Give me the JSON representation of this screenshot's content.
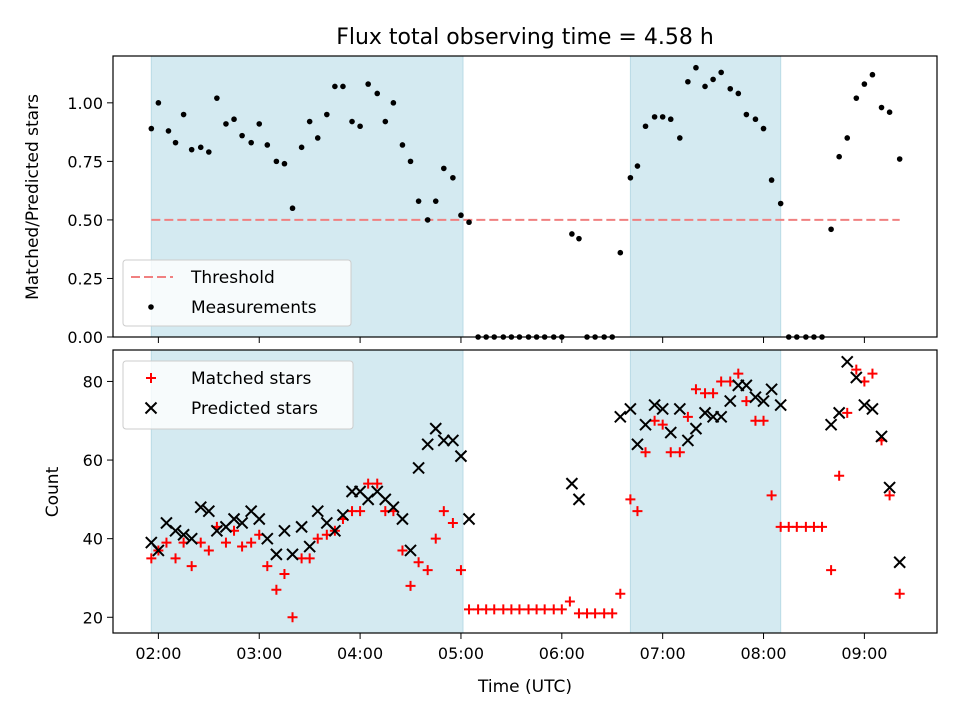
{
  "chart_data": [
    {
      "type": "scatter",
      "title": "Flux total observing time = 4.58 h",
      "ylabel": "Matched/Predicted stars",
      "xlabel": "",
      "ylim": [
        0,
        1.2
      ],
      "xlim": [
        1.55,
        9.72
      ],
      "yticks": [
        "0.00",
        "0.25",
        "0.50",
        "0.75",
        "1.00"
      ],
      "yticks_values": [
        0,
        0.25,
        0.5,
        0.75,
        1.0
      ],
      "shaded_intervals": [
        [
          1.93,
          5.02
        ],
        [
          6.68,
          8.17
        ]
      ],
      "shade_color": "#d4eaf1",
      "threshold": {
        "name": "Threshold",
        "value": 0.5,
        "x_range": [
          1.93,
          9.35
        ],
        "color": "#f08080"
      },
      "legend_position": "lower left",
      "legend_entries": [
        "Threshold",
        "Measurements"
      ],
      "series": [
        {
          "name": "Measurements",
          "color": "#000000",
          "x": [
            1.93,
            2.0,
            2.1,
            2.17,
            2.25,
            2.33,
            2.42,
            2.5,
            2.58,
            2.67,
            2.75,
            2.83,
            2.92,
            3.0,
            3.08,
            3.17,
            3.25,
            3.33,
            3.42,
            3.5,
            3.58,
            3.67,
            3.75,
            3.83,
            3.92,
            4.0,
            4.08,
            4.17,
            4.25,
            4.33,
            4.42,
            4.5,
            4.58,
            4.67,
            4.75,
            4.83,
            4.92,
            5.0,
            5.08,
            5.17,
            5.25,
            5.33,
            5.42,
            5.5,
            5.58,
            5.67,
            5.75,
            5.83,
            5.92,
            6.0,
            6.1,
            6.17,
            6.25,
            6.33,
            6.42,
            6.5,
            6.58,
            6.68,
            6.75,
            6.83,
            6.92,
            7.0,
            7.08,
            7.17,
            7.25,
            7.33,
            7.42,
            7.5,
            7.58,
            7.67,
            7.75,
            7.83,
            7.92,
            8.0,
            8.08,
            8.17,
            8.25,
            8.33,
            8.42,
            8.5,
            8.58,
            8.67,
            8.75,
            8.83,
            8.92,
            9.0,
            9.08,
            9.17,
            9.25,
            9.35
          ],
          "y": [
            0.89,
            1.0,
            0.88,
            0.83,
            0.95,
            0.8,
            0.81,
            0.79,
            1.02,
            0.91,
            0.93,
            0.86,
            0.83,
            0.91,
            0.82,
            0.75,
            0.74,
            0.55,
            0.81,
            0.92,
            0.85,
            0.95,
            1.07,
            1.07,
            0.92,
            0.9,
            1.08,
            1.04,
            0.92,
            1.0,
            0.82,
            0.75,
            0.58,
            0.5,
            0.58,
            0.72,
            0.68,
            0.52,
            0.49,
            0,
            0,
            0,
            0,
            0,
            0,
            0,
            0,
            0,
            0,
            0,
            0.44,
            0.42,
            0,
            0,
            0,
            0,
            0.36,
            0.68,
            0.73,
            0.9,
            0.94,
            0.94,
            0.93,
            0.85,
            1.09,
            1.15,
            1.07,
            1.1,
            1.13,
            1.06,
            1.04,
            0.95,
            0.93,
            0.89,
            0.67,
            0.57,
            0,
            0,
            0,
            0,
            0,
            0.46,
            0.77,
            0.85,
            1.02,
            1.08,
            1.12,
            0.98,
            0.96,
            0.76
          ]
        }
      ]
    },
    {
      "type": "scatter",
      "title": "",
      "xlabel": "Time (UTC)",
      "ylabel": "Count",
      "ylim": [
        16,
        88
      ],
      "xlim": [
        1.55,
        9.72
      ],
      "xticks": [
        "02:00",
        "03:00",
        "04:00",
        "05:00",
        "06:00",
        "07:00",
        "08:00",
        "09:00"
      ],
      "xticks_values": [
        2,
        3,
        4,
        5,
        6,
        7,
        8,
        9
      ],
      "yticks": [
        "20",
        "40",
        "60",
        "80"
      ],
      "yticks_values": [
        20,
        40,
        60,
        80
      ],
      "shaded_intervals": [
        [
          1.93,
          5.02
        ],
        [
          6.68,
          8.17
        ]
      ],
      "shade_color": "#d4eaf1",
      "legend_position": "upper left",
      "legend_entries": [
        "Matched stars",
        "Predicted stars"
      ],
      "series": [
        {
          "name": "Matched stars",
          "marker": "plus",
          "color": "#ff0000",
          "x": [
            1.93,
            2.0,
            2.08,
            2.17,
            2.25,
            2.33,
            2.42,
            2.5,
            2.58,
            2.67,
            2.75,
            2.83,
            2.92,
            3.0,
            3.08,
            3.17,
            3.25,
            3.33,
            3.42,
            3.5,
            3.58,
            3.67,
            3.75,
            3.83,
            3.92,
            4.0,
            4.08,
            4.17,
            4.25,
            4.33,
            4.42,
            4.5,
            4.58,
            4.67,
            4.75,
            4.83,
            4.92,
            5.0,
            5.08,
            5.17,
            5.25,
            5.33,
            5.42,
            5.5,
            5.58,
            5.67,
            5.75,
            5.83,
            5.92,
            6.0,
            6.08,
            6.17,
            6.25,
            6.33,
            6.42,
            6.5,
            6.58,
            6.68,
            6.75,
            6.83,
            6.92,
            7.0,
            7.08,
            7.17,
            7.25,
            7.33,
            7.42,
            7.5,
            7.58,
            7.67,
            7.75,
            7.83,
            7.92,
            8.0,
            8.08,
            8.17,
            8.25,
            8.33,
            8.42,
            8.5,
            8.58,
            8.67,
            8.75,
            8.83,
            8.92,
            9.0,
            9.08,
            9.17,
            9.25,
            9.35
          ],
          "y": [
            35,
            37,
            39,
            35,
            39,
            33,
            39,
            37,
            43,
            39,
            42,
            38,
            39,
            41,
            33,
            27,
            31,
            20,
            35,
            35,
            40,
            41,
            42,
            45,
            47,
            47,
            54,
            54,
            47,
            47,
            37,
            28,
            34,
            32,
            40,
            47,
            44,
            32,
            22,
            22,
            22,
            22,
            22,
            22,
            22,
            22,
            22,
            22,
            22,
            22,
            24,
            21,
            21,
            21,
            21,
            21,
            26,
            50,
            47,
            62,
            70,
            69,
            62,
            62,
            71,
            78,
            77,
            77,
            80,
            80,
            82,
            75,
            70,
            70,
            51,
            43,
            43,
            43,
            43,
            43,
            43,
            32,
            56,
            72,
            83,
            80,
            82,
            65,
            51,
            26
          ]
        },
        {
          "name": "Predicted stars",
          "marker": "x",
          "color": "#000000",
          "x": [
            1.93,
            2.0,
            2.08,
            2.17,
            2.25,
            2.33,
            2.42,
            2.5,
            2.58,
            2.67,
            2.75,
            2.83,
            2.92,
            3.0,
            3.08,
            3.17,
            3.25,
            3.33,
            3.42,
            3.5,
            3.58,
            3.67,
            3.75,
            3.83,
            3.92,
            4.0,
            4.08,
            4.17,
            4.25,
            4.33,
            4.42,
            4.5,
            4.58,
            4.67,
            4.75,
            4.83,
            4.92,
            5.0,
            5.08,
            6.1,
            6.17,
            6.58,
            6.68,
            6.75,
            6.83,
            6.92,
            7.0,
            7.08,
            7.17,
            7.25,
            7.33,
            7.42,
            7.5,
            7.58,
            7.67,
            7.75,
            7.83,
            7.92,
            8.0,
            8.08,
            8.17,
            8.67,
            8.75,
            8.83,
            8.92,
            9.0,
            9.08,
            9.17,
            9.25,
            9.35
          ],
          "y": [
            39,
            37,
            44,
            42,
            41,
            40,
            48,
            47,
            42,
            43,
            45,
            44,
            47,
            45,
            40,
            36,
            42,
            36,
            43,
            38,
            47,
            44,
            42,
            46,
            52,
            52,
            50,
            52,
            50,
            48,
            45,
            37,
            58,
            64,
            68,
            65,
            65,
            61,
            45,
            54,
            50,
            71,
            73,
            64,
            69,
            74,
            73,
            67,
            73,
            65,
            68,
            72,
            71,
            71,
            75,
            79,
            79,
            76,
            75,
            78,
            74,
            69,
            72,
            85,
            81,
            74,
            73,
            66,
            53,
            34
          ]
        }
      ]
    }
  ]
}
